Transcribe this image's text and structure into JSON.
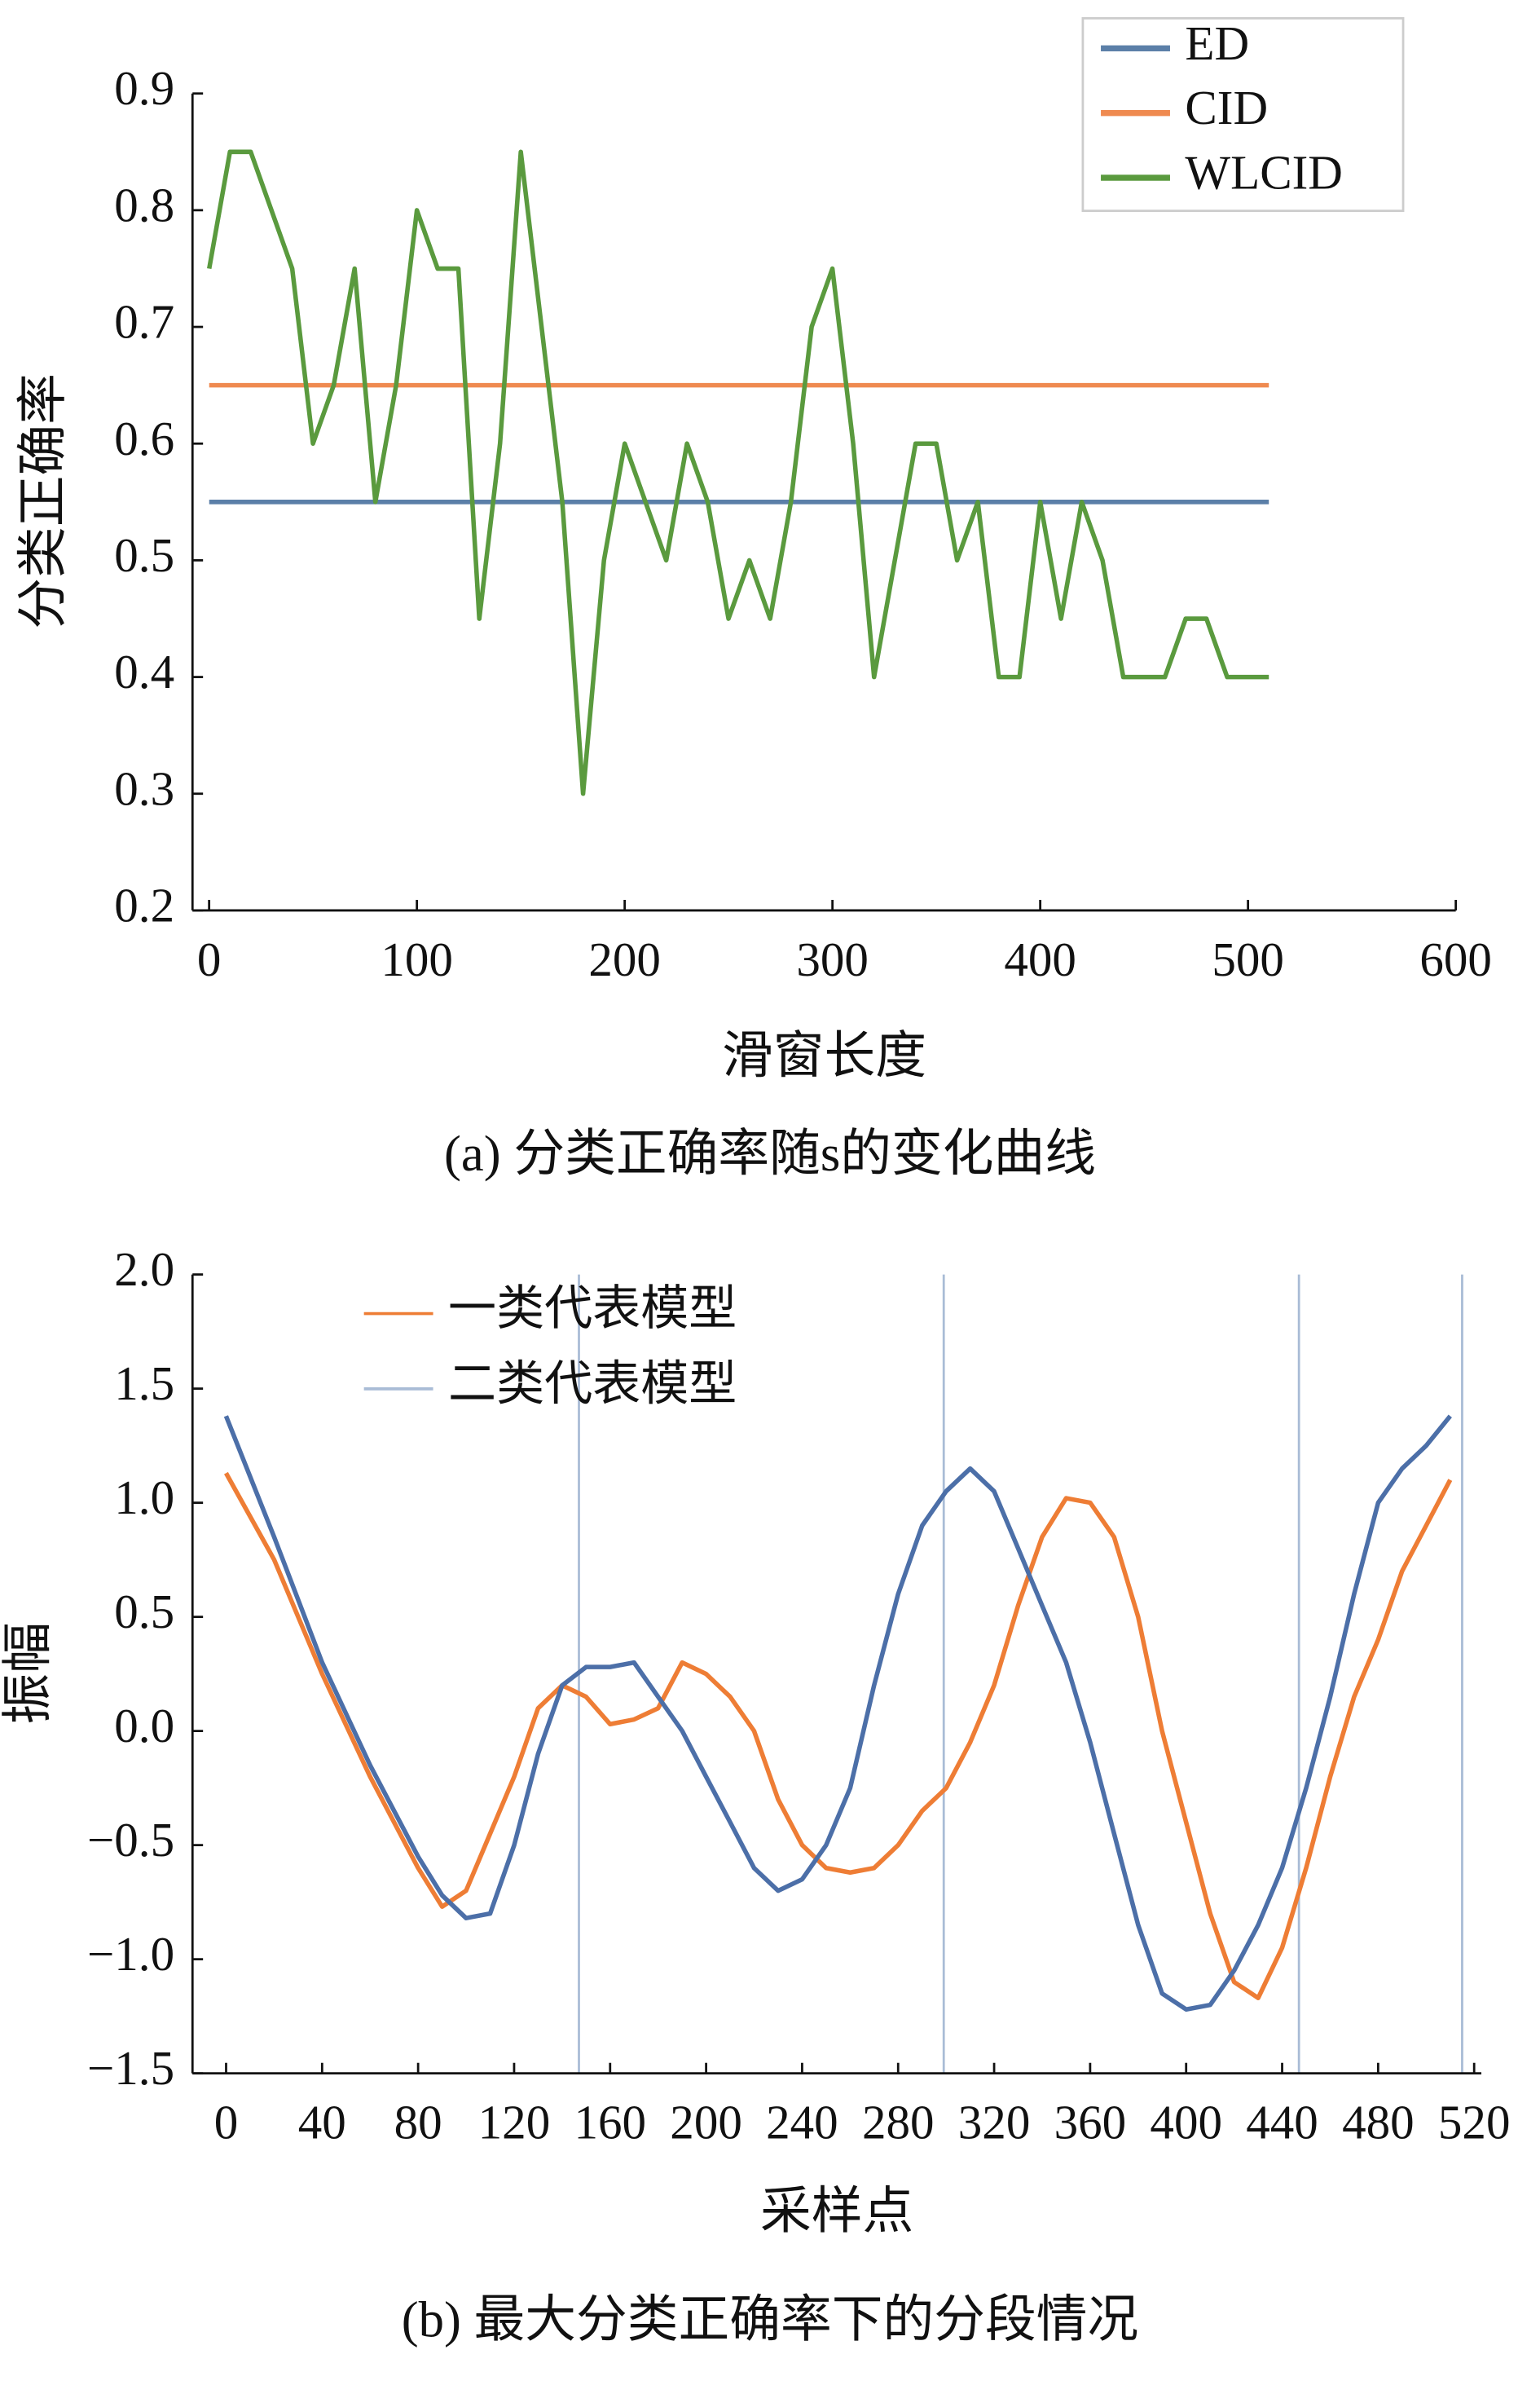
{
  "chart_data": [
    {
      "type": "line",
      "caption": "(a) 分类正确率随s的变化曲线",
      "xlabel": "滑窗长度",
      "ylabel": "分类正确率",
      "xlim": [
        -8,
        600
      ],
      "ylim": [
        0.2,
        0.9
      ],
      "xticks": [
        0,
        100,
        200,
        300,
        400,
        500,
        600
      ],
      "yticks": [
        {
          "value": 0.2,
          "label": "0.2"
        },
        {
          "value": 0.3,
          "label": "0.3"
        },
        {
          "value": 0.4,
          "label": "0.4"
        },
        {
          "value": 0.5,
          "label": "0.5"
        },
        {
          "value": 0.6,
          "label": "0.6"
        },
        {
          "value": 0.7,
          "label": "0.7"
        },
        {
          "value": 0.8,
          "label": "0.8"
        },
        {
          "value": 0.9,
          "label": "0.9"
        }
      ],
      "legend": "upper right",
      "legend_box": true,
      "series": [
        {
          "name": "ED",
          "color": "#5b7fa8",
          "x": [
            0,
            510
          ],
          "values": [
            0.55,
            0.55
          ]
        },
        {
          "name": "CID",
          "color": "#ef8a50",
          "x": [
            0,
            510
          ],
          "values": [
            0.65,
            0.65
          ]
        },
        {
          "name": "WLCID",
          "color": "#5a9a3e",
          "x": [
            0,
            10,
            20,
            30,
            40,
            50,
            60,
            70,
            80,
            90,
            100,
            110,
            120,
            130,
            140,
            150,
            160,
            170,
            180,
            190,
            200,
            210,
            220,
            230,
            240,
            250,
            260,
            270,
            280,
            290,
            300,
            310,
            320,
            330,
            340,
            350,
            360,
            370,
            380,
            390,
            400,
            410,
            420,
            430,
            440,
            450,
            460,
            470,
            480,
            490,
            500,
            510
          ],
          "values": [
            0.75,
            0.85,
            0.85,
            0.8,
            0.75,
            0.6,
            0.65,
            0.75,
            0.55,
            0.65,
            0.8,
            0.75,
            0.75,
            0.45,
            0.6,
            0.85,
            0.7,
            0.55,
            0.3,
            0.5,
            0.6,
            0.55,
            0.5,
            0.6,
            0.55,
            0.45,
            0.5,
            0.45,
            0.55,
            0.7,
            0.75,
            0.6,
            0.4,
            0.5,
            0.6,
            0.6,
            0.5,
            0.55,
            0.4,
            0.4,
            0.55,
            0.45,
            0.55,
            0.5,
            0.4,
            0.4,
            0.4,
            0.45,
            0.45,
            0.4,
            0.4,
            0.4
          ]
        }
      ]
    },
    {
      "type": "line",
      "caption": "(b) 最大分类正确率下的分段情况",
      "xlabel": "采样点",
      "ylabel": "振幅",
      "xlim": [
        -14,
        523
      ],
      "ylim": [
        -1.5,
        2.0
      ],
      "xticks": [
        0,
        40,
        80,
        120,
        160,
        200,
        240,
        280,
        320,
        360,
        400,
        440,
        480,
        520
      ],
      "yticks": [
        {
          "value": -1.5,
          "label": "−1.5"
        },
        {
          "value": -1.0,
          "label": "−1.0"
        },
        {
          "value": -0.5,
          "label": "−0.5"
        },
        {
          "value": 0,
          "label": "0.0"
        },
        {
          "value": 0.5,
          "label": "0.5"
        },
        {
          "value": 1.0,
          "label": "1.0"
        },
        {
          "value": 1.5,
          "label": "1.5"
        },
        {
          "value": 2.0,
          "label": "2.0"
        }
      ],
      "legend": "upper left",
      "legend_box": false,
      "vlines": [
        147,
        299,
        447,
        515
      ],
      "vline_color": "#a9bcd6",
      "series": [
        {
          "name": "一类代表模型",
          "color": "#ee7d35",
          "legend_color": "#ee7d35",
          "x": [
            0,
            20,
            40,
            60,
            80,
            90,
            100,
            110,
            120,
            130,
            140,
            150,
            160,
            170,
            180,
            190,
            200,
            210,
            220,
            230,
            240,
            250,
            260,
            270,
            280,
            290,
            300,
            310,
            320,
            330,
            340,
            350,
            360,
            370,
            380,
            390,
            400,
            410,
            420,
            430,
            440,
            450,
            460,
            470,
            480,
            490,
            500,
            510
          ],
          "values": [
            1.13,
            0.75,
            0.25,
            -0.2,
            -0.6,
            -0.77,
            -0.7,
            -0.45,
            -0.2,
            0.1,
            0.2,
            0.15,
            0.03,
            0.05,
            0.1,
            0.3,
            0.25,
            0.15,
            0.0,
            -0.3,
            -0.5,
            -0.6,
            -0.62,
            -0.6,
            -0.5,
            -0.35,
            -0.25,
            -0.05,
            0.2,
            0.55,
            0.85,
            1.02,
            1.0,
            0.85,
            0.5,
            0.0,
            -0.4,
            -0.8,
            -1.1,
            -1.17,
            -0.95,
            -0.6,
            -0.2,
            0.15,
            0.4,
            0.7,
            0.9,
            1.1
          ]
        },
        {
          "name": "二类代表模型",
          "color": "#4c6fa8",
          "legend_color": "#a9bcd6",
          "x": [
            0,
            20,
            40,
            60,
            80,
            90,
            100,
            110,
            120,
            130,
            140,
            150,
            160,
            170,
            180,
            190,
            200,
            210,
            220,
            230,
            240,
            250,
            260,
            270,
            280,
            290,
            300,
            310,
            320,
            330,
            340,
            350,
            360,
            370,
            380,
            390,
            400,
            410,
            420,
            430,
            440,
            450,
            460,
            470,
            480,
            490,
            500,
            510
          ],
          "values": [
            1.38,
            0.85,
            0.3,
            -0.15,
            -0.55,
            -0.72,
            -0.82,
            -0.8,
            -0.5,
            -0.1,
            0.2,
            0.28,
            0.28,
            0.3,
            0.15,
            0.0,
            -0.2,
            -0.4,
            -0.6,
            -0.7,
            -0.65,
            -0.5,
            -0.25,
            0.2,
            0.6,
            0.9,
            1.05,
            1.15,
            1.05,
            0.8,
            0.55,
            0.3,
            -0.05,
            -0.45,
            -0.85,
            -1.15,
            -1.22,
            -1.2,
            -1.05,
            -0.85,
            -0.6,
            -0.25,
            0.15,
            0.6,
            1.0,
            1.15,
            1.25,
            1.38
          ]
        }
      ]
    }
  ]
}
